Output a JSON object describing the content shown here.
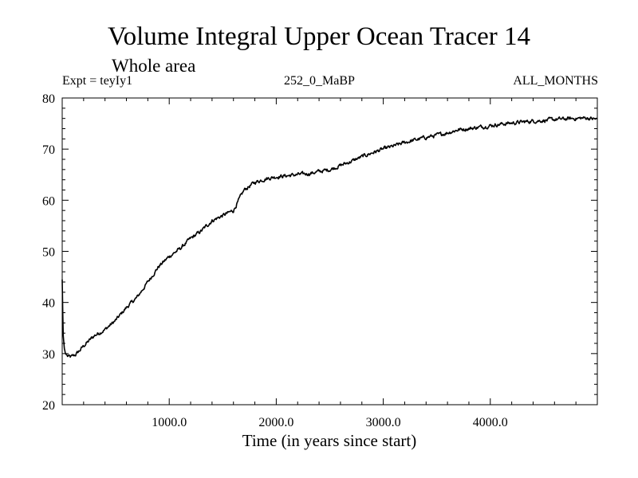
{
  "chart_data": {
    "type": "line",
    "title": "Volume Integral Upper Ocean Tracer 14",
    "subtitle": "Whole area",
    "annotations": {
      "left": "Expt = teyIy1",
      "center": "252_0_MaBP",
      "right": "ALL_MONTHS"
    },
    "xlabel": "Time (in years since start)",
    "ylabel": "",
    "xlim": [
      0,
      5000
    ],
    "ylim": [
      20,
      80
    ],
    "x_ticks": [
      1000,
      2000,
      3000,
      4000
    ],
    "x_tick_labels": [
      "1000.0",
      "2000.0",
      "3000.0",
      "4000.0"
    ],
    "y_ticks": [
      20,
      30,
      40,
      50,
      60,
      70,
      80
    ],
    "y_tick_labels": [
      "20",
      "30",
      "40",
      "50",
      "60",
      "70",
      "80"
    ],
    "grid": false,
    "series": [
      {
        "name": "Upper Ocean Tracer 14",
        "color": "#000000",
        "x": [
          0,
          5,
          10,
          20,
          30,
          50,
          80,
          120,
          160,
          200,
          300,
          400,
          500,
          600,
          700,
          800,
          900,
          1000,
          1100,
          1200,
          1300,
          1400,
          1500,
          1600,
          1700,
          1800,
          1900,
          2000,
          2100,
          2200,
          2300,
          2400,
          2500,
          2600,
          2700,
          2800,
          2900,
          3000,
          3100,
          3200,
          3300,
          3400,
          3500,
          3600,
          3700,
          3800,
          3900,
          4000,
          4100,
          4200,
          4300,
          4400,
          4500,
          4600,
          4700,
          4800,
          4900,
          5000
        ],
        "values": [
          44.5,
          38.0,
          33.5,
          31.0,
          30.0,
          29.5,
          29.3,
          29.7,
          30.5,
          31.5,
          33.5,
          34.7,
          36.5,
          39.0,
          41.0,
          44.0,
          47.0,
          49.0,
          50.5,
          52.5,
          54.0,
          56.0,
          57.0,
          58.0,
          62.0,
          63.5,
          64.2,
          64.6,
          64.8,
          65.0,
          65.2,
          65.6,
          66.0,
          66.8,
          67.6,
          68.5,
          69.3,
          70.0,
          70.6,
          71.3,
          71.8,
          72.3,
          72.7,
          73.2,
          73.8,
          74.0,
          74.3,
          74.6,
          74.9,
          75.1,
          75.3,
          75.5,
          75.6,
          75.8,
          75.9,
          76.0,
          76.1,
          75.8
        ],
        "noise": 0.45
      }
    ]
  }
}
